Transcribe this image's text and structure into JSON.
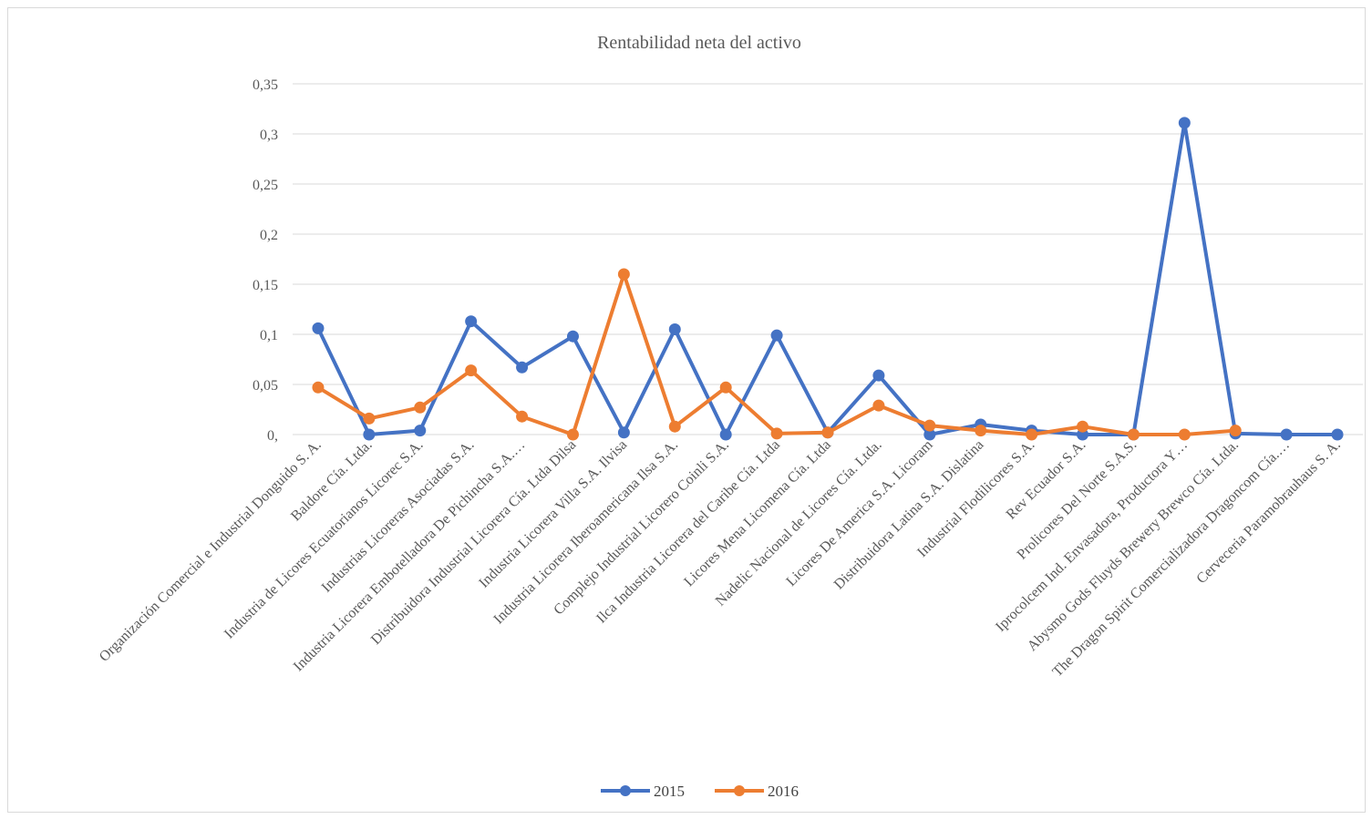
{
  "chart_data": {
    "type": "line",
    "title": "Rentabilidad neta del activo",
    "xlabel": "",
    "ylabel": "",
    "ylim": [
      0,
      0.35
    ],
    "y_ticks": [
      {
        "value": 0,
        "label": "0,"
      },
      {
        "value": 0.05,
        "label": "0,05"
      },
      {
        "value": 0.1,
        "label": "0,1"
      },
      {
        "value": 0.15,
        "label": "0,15"
      },
      {
        "value": 0.2,
        "label": "0,2"
      },
      {
        "value": 0.25,
        "label": "0,25"
      },
      {
        "value": 0.3,
        "label": "0,3"
      },
      {
        "value": 0.35,
        "label": "0,35"
      }
    ],
    "grid": true,
    "legend_position": "bottom",
    "categories": [
      "Organización Comercial e Industrial Donguido S. A.",
      "Baldore Cía. Ltda.",
      "Industria de Licores Ecuatorianos Licorec S.A.",
      "Industrias Licoreras Asociadas S.A.",
      "Industria Licorera Embotelladora De Pichincha S.A.…",
      "Distribuidora Industrial Licorera Cía. Ltda Dilsa",
      "Industria Licorera Villa S.A. Ilvisa",
      "Industria Licorera Iberoamericana Ilsa S.A.",
      "Complejo Industrial Licorero Coinli S.A.",
      "Ilca Industria Licorera del Caribe Cía. Ltda",
      "Licores Mena Licomena Cía. Ltda",
      "Nadelic Nacional de Licores Cía. Ltda.",
      "Licores De America S.A. Licoram",
      "Distribuidora Latina S.A. Dislatina",
      "Industrial Flodilicores S.A.",
      "Rev Ecuador S.A.",
      "Prolicores Del Norte S.A.S.",
      "Iprocolcem Ind. Envasadora, Productora Y…",
      "Abysmo Gods Fluyds Brewery Brewco Cía. Ltda.",
      "The Dragon Spirit Comercializadora Dragoncom Cía.…",
      "Cerveceria Paramobrauhaus S. A."
    ],
    "series": [
      {
        "name": "2015",
        "color": "#4472C4",
        "values": [
          0.106,
          0,
          0.004,
          0.113,
          0.067,
          0.098,
          0.002,
          0.105,
          0,
          0.099,
          0.002,
          0.059,
          0,
          0.01,
          0.004,
          0,
          0,
          0.311,
          0.001,
          0,
          0
        ]
      },
      {
        "name": "2016",
        "color": "#ED7D31",
        "values": [
          0.047,
          0.016,
          0.027,
          0.064,
          0.018,
          0,
          0.16,
          0.008,
          0.047,
          0.001,
          0.002,
          0.029,
          0.009,
          0.004,
          0,
          0.008,
          0,
          0,
          0.004,
          null,
          null
        ]
      }
    ]
  }
}
